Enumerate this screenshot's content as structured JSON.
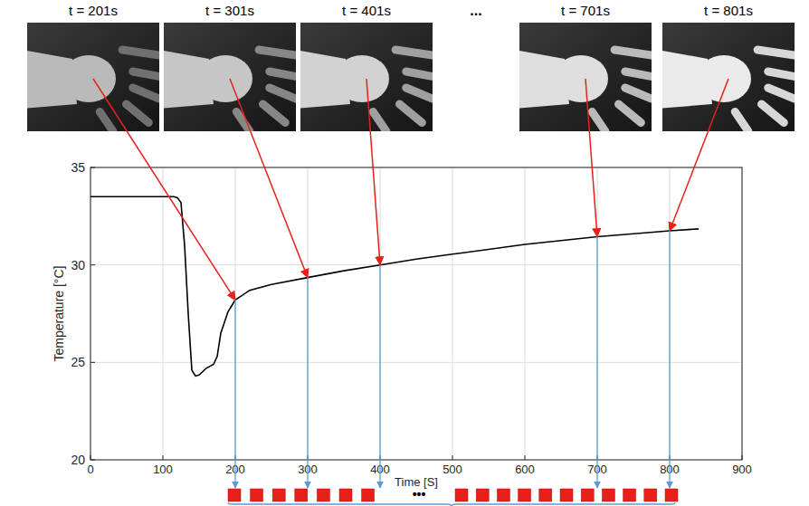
{
  "chart_data": {
    "type": "line",
    "x_label": "Time [S]",
    "y_label": "Temperature [°C]",
    "x": [
      0,
      50,
      100,
      115,
      120,
      125,
      130,
      135,
      140,
      145,
      150,
      160,
      170,
      175,
      180,
      190,
      200,
      220,
      250,
      300,
      350,
      400,
      450,
      500,
      550,
      600,
      650,
      700,
      750,
      800,
      840
    ],
    "values": [
      33.5,
      33.5,
      33.5,
      33.5,
      33.45,
      33.2,
      31,
      27.5,
      24.6,
      24.3,
      24.35,
      24.7,
      24.9,
      25.3,
      26.5,
      27.6,
      28.2,
      28.7,
      29.0,
      29.35,
      29.7,
      30.0,
      30.3,
      30.55,
      30.8,
      31.05,
      31.25,
      31.45,
      31.6,
      31.75,
      31.85
    ],
    "color": "#000000",
    "xlim": [
      0,
      900
    ],
    "ylim": [
      20,
      35
    ],
    "xticks": [
      0,
      100,
      200,
      300,
      400,
      500,
      600,
      700,
      800,
      900
    ],
    "yticks": [
      20,
      25,
      30,
      35
    ],
    "grid": true,
    "frames": [
      {
        "label": "t = 201s",
        "x": 200
      },
      {
        "label": "t = 301s",
        "x": 300
      },
      {
        "label": "t = 401s",
        "x": 400
      },
      {
        "label": "t = 701s",
        "x": 700
      },
      {
        "label": "t = 801s",
        "x": 800
      }
    ],
    "frames_gap": "...",
    "sequence_gap": "•••"
  }
}
